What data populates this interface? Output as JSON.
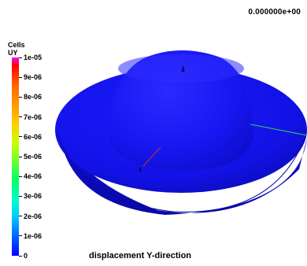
{
  "header": {
    "timestamp": "0.000000e+00"
  },
  "legend": {
    "title_line1": "Cells",
    "title_line2": "UY",
    "ticks": [
      "1e-05",
      "9e-06",
      "8e-06",
      "7e-06",
      "6e-06",
      "5e-06",
      "4e-06",
      "3e-06",
      "2e-06",
      "1e-06",
      "0"
    ],
    "colors": {
      "max": "#ff00ff",
      "min": "#0000ff"
    }
  },
  "viewport": {
    "caption": "displacement Y-direction",
    "surface_color": "#1414ee",
    "axes": {
      "x": "x",
      "z": "z"
    }
  }
}
